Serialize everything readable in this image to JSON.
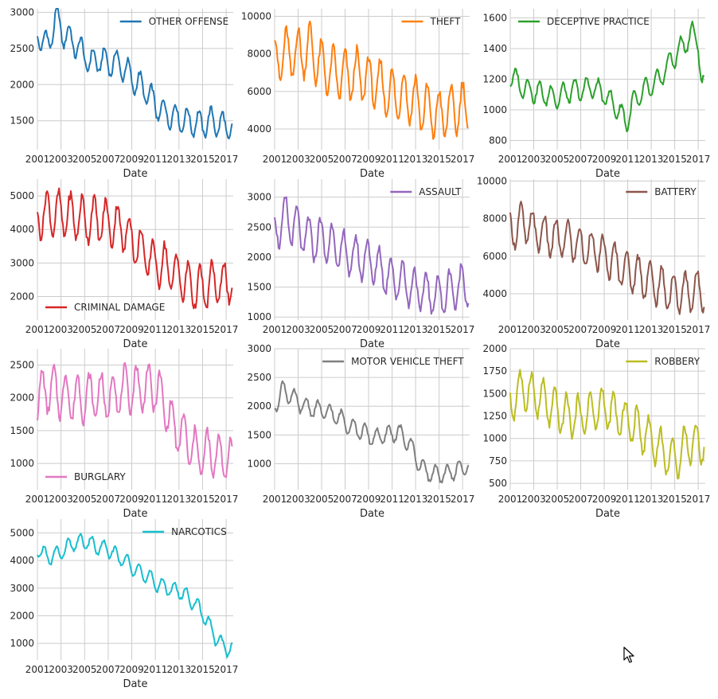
{
  "x_ticks": [
    "2001",
    "2003",
    "2005",
    "2007",
    "2009",
    "2011",
    "2013",
    "2015",
    "2017"
  ],
  "x_label": "Date",
  "chart_data": [
    {
      "type": "line",
      "xlabel": "Date",
      "series": [
        {
          "name": "OTHER OFFENSE",
          "color": "#1f77b4"
        }
      ],
      "ylim": [
        1100,
        3050
      ],
      "yticks": [
        1500,
        2000,
        2500,
        3000
      ],
      "legend": "top-right",
      "anchors": [
        [
          2001.0,
          2750
        ],
        [
          2001.5,
          2550
        ],
        [
          2002.0,
          2600
        ],
        [
          2002.6,
          2950
        ],
        [
          2003.2,
          2700
        ],
        [
          2004.0,
          2600
        ],
        [
          2004.8,
          2450
        ],
        [
          2005.5,
          2300
        ],
        [
          2006.3,
          2350
        ],
        [
          2007.0,
          2300
        ],
        [
          2007.8,
          2300
        ],
        [
          2008.5,
          2200
        ],
        [
          2009.2,
          2050
        ],
        [
          2010.0,
          1950
        ],
        [
          2010.7,
          1800
        ],
        [
          2011.3,
          1650
        ],
        [
          2012.0,
          1600
        ],
        [
          2012.8,
          1550
        ],
        [
          2013.5,
          1500
        ],
        [
          2014.2,
          1480
        ],
        [
          2015.0,
          1450
        ],
        [
          2015.8,
          1500
        ],
        [
          2016.5,
          1450
        ],
        [
          2017.3,
          1400
        ]
      ],
      "amp": 180,
      "phase": 0.3
    },
    {
      "type": "line",
      "xlabel": "Date",
      "series": [
        {
          "name": "THEFT",
          "color": "#ff7f0e"
        }
      ],
      "ylim": [
        2900,
        10400
      ],
      "yticks": [
        4000,
        6000,
        8000,
        10000
      ],
      "legend": "top-right",
      "anchors": [
        [
          2001.0,
          7700
        ],
        [
          2002.0,
          8000
        ],
        [
          2003.0,
          8000
        ],
        [
          2004.0,
          8300
        ],
        [
          2005.0,
          7300
        ],
        [
          2006.0,
          7000
        ],
        [
          2007.0,
          6800
        ],
        [
          2008.0,
          6900
        ],
        [
          2009.0,
          6600
        ],
        [
          2010.0,
          6300
        ],
        [
          2011.0,
          5800
        ],
        [
          2012.0,
          5800
        ],
        [
          2013.0,
          5500
        ],
        [
          2014.0,
          5000
        ],
        [
          2015.0,
          4700
        ],
        [
          2016.0,
          5000
        ],
        [
          2017.3,
          5200
        ]
      ],
      "amp": 1300,
      "phase": 0.0
    },
    {
      "type": "line",
      "xlabel": "Date",
      "series": [
        {
          "name": "DECEPTIVE PRACTICE",
          "color": "#2ca02c"
        }
      ],
      "ylim": [
        740,
        1660
      ],
      "yticks": [
        800,
        1000,
        1200,
        1400,
        1600
      ],
      "legend": "top-left",
      "anchors": [
        [
          2001.0,
          1230
        ],
        [
          2002.0,
          1150
        ],
        [
          2003.0,
          1120
        ],
        [
          2004.0,
          1100
        ],
        [
          2005.0,
          1080
        ],
        [
          2006.0,
          1120
        ],
        [
          2007.0,
          1130
        ],
        [
          2008.0,
          1150
        ],
        [
          2009.0,
          1100
        ],
        [
          2010.0,
          1020
        ],
        [
          2010.9,
          920
        ],
        [
          2011.5,
          1050
        ],
        [
          2012.5,
          1130
        ],
        [
          2013.5,
          1180
        ],
        [
          2014.5,
          1300
        ],
        [
          2015.5,
          1400
        ],
        [
          2016.5,
          1500
        ],
        [
          2017.0,
          1450
        ],
        [
          2017.3,
          1150
        ]
      ],
      "amp": 70,
      "phase": 0.5
    },
    {
      "type": "line",
      "xlabel": "Date",
      "series": [
        {
          "name": "CRIMINAL DAMAGE",
          "color": "#d62728"
        }
      ],
      "ylim": [
        1300,
        5500
      ],
      "yticks": [
        2000,
        3000,
        4000,
        5000
      ],
      "legend": "bottom-left",
      "anchors": [
        [
          2001.0,
          4400
        ],
        [
          2002.0,
          4500
        ],
        [
          2003.0,
          4450
        ],
        [
          2004.0,
          4400
        ],
        [
          2005.0,
          4300
        ],
        [
          2006.0,
          4300
        ],
        [
          2007.0,
          4200
        ],
        [
          2008.0,
          4100
        ],
        [
          2009.0,
          3700
        ],
        [
          2010.0,
          3300
        ],
        [
          2011.0,
          3000
        ],
        [
          2012.0,
          2900
        ],
        [
          2013.0,
          2600
        ],
        [
          2014.0,
          2300
        ],
        [
          2015.0,
          2200
        ],
        [
          2016.0,
          2400
        ],
        [
          2017.3,
          2400
        ]
      ],
      "amp": 650,
      "phase": 0.2
    },
    {
      "type": "line",
      "xlabel": "Date",
      "series": [
        {
          "name": "ASSAULT",
          "color": "#9467bd"
        }
      ],
      "ylim": [
        950,
        3300
      ],
      "yticks": [
        1000,
        1500,
        2000,
        2500,
        3000
      ],
      "legend": "top-right",
      "anchors": [
        [
          2001.0,
          2450
        ],
        [
          2002.0,
          2650
        ],
        [
          2003.0,
          2450
        ],
        [
          2004.0,
          2300
        ],
        [
          2005.0,
          2300
        ],
        [
          2006.0,
          2200
        ],
        [
          2007.0,
          2050
        ],
        [
          2008.0,
          2000
        ],
        [
          2009.0,
          1950
        ],
        [
          2010.0,
          1800
        ],
        [
          2011.0,
          1650
        ],
        [
          2012.0,
          1600
        ],
        [
          2013.0,
          1450
        ],
        [
          2014.0,
          1400
        ],
        [
          2015.0,
          1350
        ],
        [
          2016.0,
          1450
        ],
        [
          2017.3,
          1550
        ]
      ],
      "amp": 350,
      "phase": 0.1
    },
    {
      "type": "line",
      "xlabel": "Date",
      "series": [
        {
          "name": "BATTERY",
          "color": "#8c564b"
        }
      ],
      "ylim": [
        2600,
        10100
      ],
      "yticks": [
        4000,
        6000,
        8000,
        10000
      ],
      "legend": "top-right",
      "anchors": [
        [
          2001.0,
          7300
        ],
        [
          2002.0,
          7800
        ],
        [
          2003.0,
          7400
        ],
        [
          2004.0,
          7100
        ],
        [
          2005.0,
          6900
        ],
        [
          2006.0,
          6900
        ],
        [
          2007.0,
          6500
        ],
        [
          2008.0,
          6400
        ],
        [
          2009.0,
          6000
        ],
        [
          2010.0,
          5600
        ],
        [
          2011.0,
          5200
        ],
        [
          2012.0,
          5000
        ],
        [
          2013.0,
          4600
        ],
        [
          2014.0,
          4300
        ],
        [
          2015.0,
          4000
        ],
        [
          2016.0,
          4100
        ],
        [
          2017.3,
          4200
        ]
      ],
      "amp": 1000,
      "phase": 0.1
    },
    {
      "type": "line",
      "xlabel": "Date",
      "series": [
        {
          "name": "BURGLARY",
          "color": "#e377c2"
        }
      ],
      "ylim": [
        600,
        2750
      ],
      "yticks": [
        1000,
        1500,
        2000,
        2500
      ],
      "legend": "bottom-left",
      "anchors": [
        [
          2001.0,
          2000
        ],
        [
          2002.0,
          2150
        ],
        [
          2003.0,
          2050
        ],
        [
          2004.0,
          2000
        ],
        [
          2005.0,
          2000
        ],
        [
          2006.0,
          2050
        ],
        [
          2007.0,
          2000
        ],
        [
          2008.0,
          2100
        ],
        [
          2009.0,
          2150
        ],
        [
          2010.0,
          2150
        ],
        [
          2011.0,
          2150
        ],
        [
          2011.8,
          1900
        ],
        [
          2012.5,
          1550
        ],
        [
          2013.5,
          1400
        ],
        [
          2014.5,
          1150
        ],
        [
          2015.5,
          1150
        ],
        [
          2016.5,
          1100
        ],
        [
          2017.3,
          1050
        ]
      ],
      "amp": 350,
      "phase": 0.6
    },
    {
      "type": "line",
      "xlabel": "Date",
      "series": [
        {
          "name": "MOTOR VEHICLE THEFT",
          "color": "#7f7f7f"
        }
      ],
      "ylim": [
        550,
        3000
      ],
      "yticks": [
        1000,
        1500,
        2000,
        2500,
        3000
      ],
      "legend": "top-right",
      "anchors": [
        [
          2001.0,
          2000
        ],
        [
          2001.7,
          2300
        ],
        [
          2002.5,
          2150
        ],
        [
          2003.5,
          2000
        ],
        [
          2004.5,
          1950
        ],
        [
          2005.5,
          1900
        ],
        [
          2006.5,
          1800
        ],
        [
          2007.5,
          1650
        ],
        [
          2008.5,
          1550
        ],
        [
          2009.5,
          1450
        ],
        [
          2010.5,
          1500
        ],
        [
          2011.5,
          1550
        ],
        [
          2012.5,
          1350
        ],
        [
          2013.3,
          1000
        ],
        [
          2014.0,
          850
        ],
        [
          2015.0,
          800
        ],
        [
          2016.0,
          850
        ],
        [
          2017.3,
          950
        ]
      ],
      "amp": 150,
      "phase": 0.3
    },
    {
      "type": "line",
      "xlabel": "Date",
      "series": [
        {
          "name": "ROBBERY",
          "color": "#bcbd22"
        }
      ],
      "ylim": [
        430,
        2000
      ],
      "yticks": [
        500,
        750,
        1000,
        1250,
        1500,
        1750,
        2000
      ],
      "legend": "top-right",
      "anchors": [
        [
          2001.0,
          1400
        ],
        [
          2002.0,
          1550
        ],
        [
          2003.0,
          1500
        ],
        [
          2004.0,
          1400
        ],
        [
          2005.0,
          1300
        ],
        [
          2006.0,
          1250
        ],
        [
          2007.0,
          1250
        ],
        [
          2008.0,
          1300
        ],
        [
          2009.0,
          1350
        ],
        [
          2010.0,
          1250
        ],
        [
          2011.0,
          1200
        ],
        [
          2012.0,
          1100
        ],
        [
          2013.0,
          1000
        ],
        [
          2014.0,
          850
        ],
        [
          2015.0,
          750
        ],
        [
          2016.0,
          950
        ],
        [
          2017.3,
          950
        ]
      ],
      "amp": 220,
      "phase": 0.2
    },
    {
      "type": "line",
      "xlabel": "Date",
      "series": [
        {
          "name": "NARCOTICS",
          "color": "#17becf"
        }
      ],
      "ylim": [
        400,
        5500
      ],
      "yticks": [
        1000,
        2000,
        3000,
        4000,
        5000
      ],
      "legend": "top-right",
      "anchors": [
        [
          2001.0,
          4400
        ],
        [
          2002.0,
          4100
        ],
        [
          2003.0,
          4300
        ],
        [
          2004.0,
          4600
        ],
        [
          2005.0,
          4700
        ],
        [
          2006.0,
          4500
        ],
        [
          2007.0,
          4400
        ],
        [
          2008.0,
          4100
        ],
        [
          2009.0,
          3800
        ],
        [
          2010.0,
          3500
        ],
        [
          2011.0,
          3200
        ],
        [
          2012.0,
          3000
        ],
        [
          2013.0,
          2900
        ],
        [
          2014.0,
          2600
        ],
        [
          2015.0,
          2100
        ],
        [
          2016.0,
          1300
        ],
        [
          2016.7,
          900
        ],
        [
          2017.3,
          800
        ]
      ],
      "amp": 280,
      "phase": 0.4
    }
  ]
}
